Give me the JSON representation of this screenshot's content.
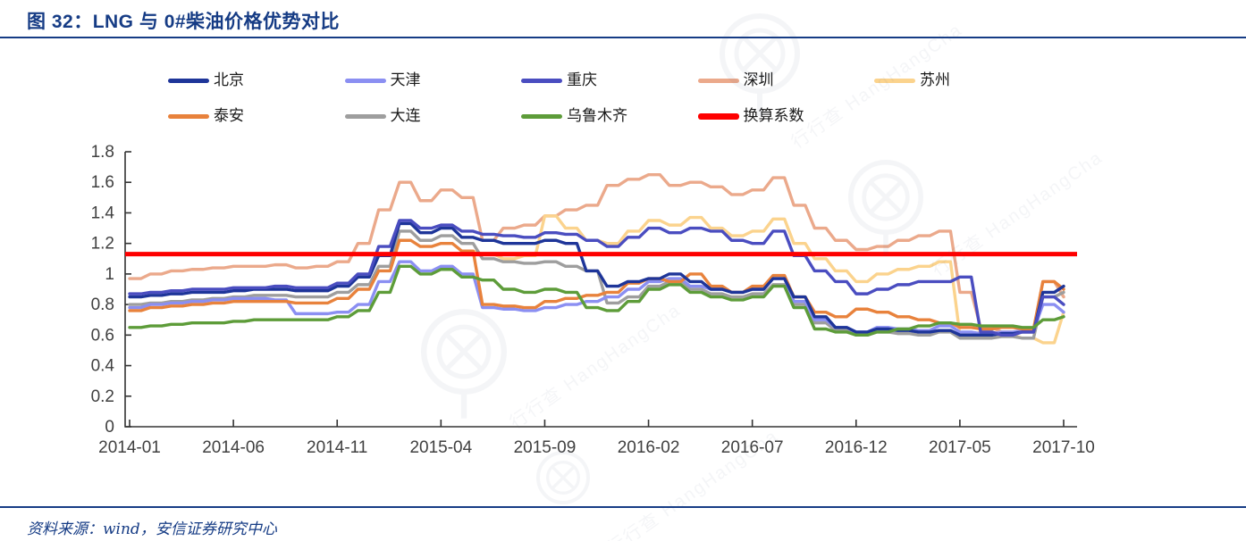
{
  "header": {
    "title": "图 32：LNG 与 0#柴油价格优势对比"
  },
  "footer": {
    "source": "资料来源：wind，安信证券研究中心"
  },
  "watermark": {
    "text_cn": "行行查",
    "text_en": "HangHangCha"
  },
  "colors": {
    "title_blue": "#163c85",
    "axis_text": "#404040",
    "axis_line": "#333333"
  },
  "chart_data": {
    "type": "line",
    "title": "LNG 与 0#柴油价格优势对比",
    "xlabel": "",
    "ylabel": "",
    "grid": false,
    "legend_position": "top",
    "ylim": [
      0,
      1.8
    ],
    "ytick_labels": [
      "0",
      "0.2",
      "0.4",
      "0.6",
      "0.8",
      "1",
      "1.2",
      "1.4",
      "1.6",
      "1.8"
    ],
    "xtick_labels": [
      "2014-01",
      "2014-06",
      "2014-11",
      "2015-04",
      "2015-09",
      "2016-02",
      "2016-07",
      "2016-12",
      "2017-05",
      "2017-10"
    ],
    "xtick_indices": [
      0,
      5,
      10,
      15,
      20,
      25,
      30,
      35,
      40,
      45
    ],
    "x": [
      "2014-01",
      "2014-02",
      "2014-03",
      "2014-04",
      "2014-05",
      "2014-06",
      "2014-07",
      "2014-08",
      "2014-09",
      "2014-10",
      "2014-11",
      "2014-12",
      "2015-01",
      "2015-02",
      "2015-03",
      "2015-04",
      "2015-05",
      "2015-06",
      "2015-07",
      "2015-08",
      "2015-09",
      "2015-10",
      "2015-11",
      "2015-12",
      "2016-01",
      "2016-02",
      "2016-03",
      "2016-04",
      "2016-05",
      "2016-06",
      "2016-07",
      "2016-08",
      "2016-09",
      "2016-10",
      "2016-11",
      "2016-12",
      "2017-01",
      "2017-02",
      "2017-03",
      "2017-04",
      "2017-05",
      "2017-06",
      "2017-07",
      "2017-08",
      "2017-09",
      "2017-10"
    ],
    "series": [
      {
        "key": "beijing",
        "name": "北京",
        "color": "#1e3599",
        "values": [
          0.85,
          0.86,
          0.87,
          0.88,
          0.88,
          0.89,
          0.9,
          0.9,
          0.89,
          0.89,
          0.92,
          0.98,
          1.12,
          1.33,
          1.27,
          1.3,
          1.24,
          1.22,
          1.2,
          1.2,
          1.22,
          1.2,
          1.02,
          0.92,
          0.95,
          0.97,
          1.0,
          0.95,
          0.9,
          0.88,
          0.9,
          0.97,
          0.85,
          0.72,
          0.65,
          0.62,
          0.64,
          0.63,
          0.62,
          0.63,
          0.6,
          0.6,
          0.61,
          0.62,
          0.88,
          0.92
        ]
      },
      {
        "key": "tianjin",
        "name": "天津",
        "color": "#8b8ff2",
        "values": [
          0.78,
          0.8,
          0.81,
          0.82,
          0.83,
          0.84,
          0.84,
          0.83,
          0.74,
          0.74,
          0.75,
          0.8,
          0.95,
          1.08,
          1.02,
          1.05,
          1.0,
          0.78,
          0.77,
          0.76,
          0.78,
          0.8,
          0.82,
          0.85,
          0.9,
          0.95,
          0.97,
          0.92,
          0.9,
          0.88,
          0.9,
          0.97,
          0.82,
          0.7,
          0.65,
          0.62,
          0.65,
          0.64,
          0.63,
          0.66,
          0.62,
          0.61,
          0.62,
          0.63,
          0.8,
          0.75
        ]
      },
      {
        "key": "chongqing",
        "name": "重庆",
        "color": "#4a4dc0",
        "values": [
          0.87,
          0.88,
          0.89,
          0.9,
          0.9,
          0.91,
          0.91,
          0.92,
          0.91,
          0.91,
          0.94,
          1.0,
          1.18,
          1.35,
          1.3,
          1.32,
          1.28,
          1.26,
          1.25,
          1.24,
          1.27,
          1.26,
          1.22,
          1.18,
          1.24,
          1.3,
          1.27,
          1.3,
          1.28,
          1.22,
          1.2,
          1.28,
          1.12,
          1.02,
          0.95,
          0.87,
          0.9,
          0.93,
          0.95,
          0.95,
          0.98,
          0.62,
          0.6,
          0.62,
          0.85,
          0.8
        ]
      },
      {
        "key": "shenzhen",
        "name": "深圳",
        "color": "#eba98b",
        "values": [
          0.97,
          1.0,
          1.02,
          1.03,
          1.04,
          1.05,
          1.05,
          1.06,
          1.04,
          1.05,
          1.08,
          1.2,
          1.42,
          1.6,
          1.48,
          1.55,
          1.5,
          1.22,
          1.3,
          1.32,
          1.38,
          1.42,
          1.45,
          1.58,
          1.62,
          1.65,
          1.58,
          1.6,
          1.57,
          1.52,
          1.55,
          1.63,
          1.45,
          1.3,
          1.22,
          1.16,
          1.18,
          1.22,
          1.25,
          1.28,
          0.88,
          0.65,
          0.62,
          0.62,
          0.95,
          0.85
        ]
      },
      {
        "key": "suzhou",
        "name": "苏州",
        "color": "#fbd38d",
        "values": [
          null,
          null,
          null,
          null,
          null,
          null,
          null,
          null,
          null,
          null,
          null,
          null,
          null,
          null,
          null,
          null,
          1.15,
          1.13,
          1.1,
          1.12,
          1.38,
          1.3,
          1.22,
          1.2,
          1.28,
          1.35,
          1.32,
          1.37,
          1.3,
          1.25,
          1.28,
          1.36,
          1.2,
          1.1,
          1.02,
          0.95,
          1.0,
          1.03,
          1.05,
          1.08,
          0.6,
          0.62,
          0.6,
          0.58,
          0.55,
          0.75
        ]
      },
      {
        "key": "taian",
        "name": "泰安",
        "color": "#e8823c",
        "values": [
          0.76,
          0.78,
          0.79,
          0.8,
          0.81,
          0.82,
          0.82,
          0.82,
          0.81,
          0.81,
          0.84,
          0.9,
          1.02,
          1.22,
          1.18,
          1.2,
          1.15,
          0.8,
          0.79,
          0.78,
          0.82,
          0.84,
          0.86,
          0.88,
          0.94,
          0.97,
          0.95,
          1.0,
          0.92,
          0.88,
          0.92,
          0.99,
          0.85,
          0.75,
          0.72,
          0.77,
          0.75,
          0.72,
          0.7,
          0.68,
          0.65,
          0.64,
          0.65,
          0.64,
          0.95,
          0.9
        ]
      },
      {
        "key": "dalian",
        "name": "大连",
        "color": "#9e9e9e",
        "values": [
          0.8,
          0.81,
          0.82,
          0.83,
          0.84,
          0.85,
          0.86,
          0.86,
          0.85,
          0.85,
          0.88,
          0.93,
          1.05,
          1.28,
          1.22,
          1.25,
          1.2,
          1.1,
          1.08,
          1.07,
          1.08,
          1.05,
          1.02,
          0.81,
          0.85,
          0.92,
          0.95,
          0.9,
          0.87,
          0.85,
          0.87,
          0.93,
          0.8,
          0.68,
          0.63,
          0.6,
          0.62,
          0.61,
          0.6,
          0.62,
          0.58,
          0.58,
          0.59,
          0.58,
          0.85,
          0.88
        ]
      },
      {
        "key": "wulumuqi",
        "name": "乌鲁木齐",
        "color": "#5d9c39",
        "values": [
          0.65,
          0.66,
          0.67,
          0.68,
          0.68,
          0.69,
          0.7,
          0.7,
          0.7,
          0.7,
          0.72,
          0.76,
          0.88,
          1.05,
          1.0,
          1.03,
          0.98,
          0.96,
          0.9,
          0.88,
          0.9,
          0.88,
          0.78,
          0.76,
          0.82,
          0.9,
          0.93,
          0.88,
          0.85,
          0.83,
          0.85,
          0.92,
          0.78,
          0.64,
          0.62,
          0.6,
          0.62,
          0.64,
          0.66,
          0.68,
          0.67,
          0.66,
          0.66,
          0.65,
          0.7,
          0.72
        ]
      }
    ],
    "constant_series": {
      "key": "huansuanxishu",
      "name": "换算系数",
      "color": "#fe0000",
      "value": 1.13
    }
  }
}
